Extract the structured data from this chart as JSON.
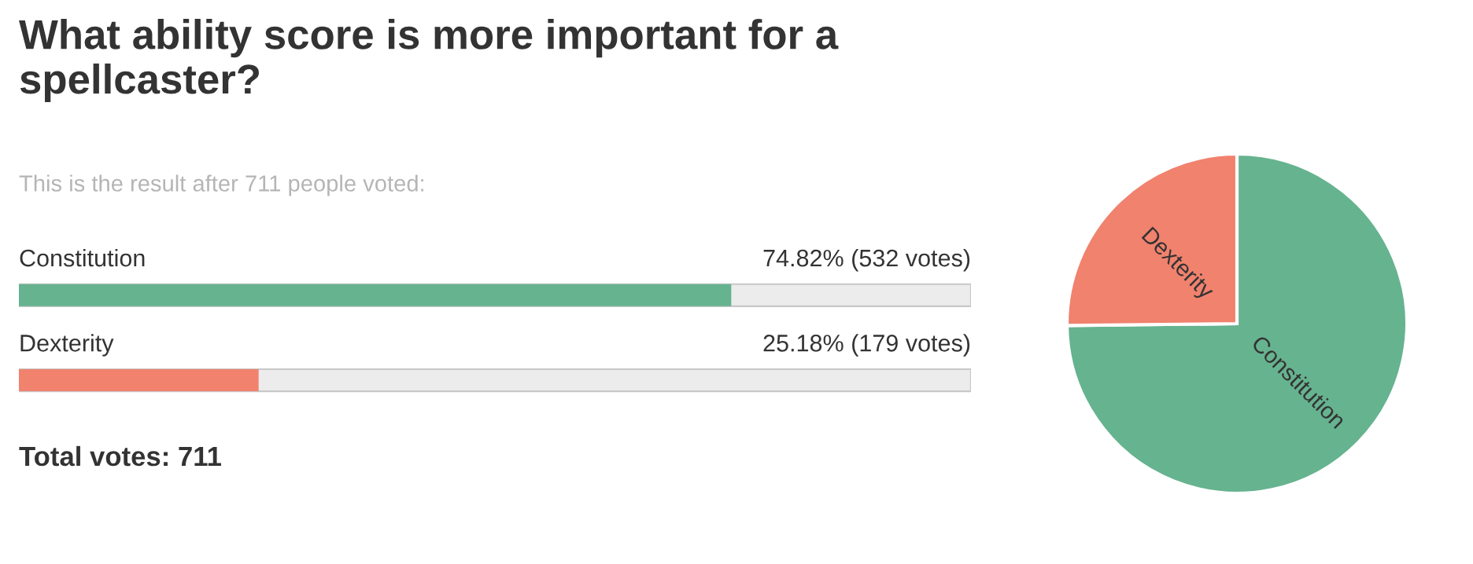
{
  "chart_data": [
    {
      "type": "bar",
      "orientation": "horizontal",
      "title": "What ability score is more important for a spellcaster?",
      "subtitle": "This is the result after 711 people voted:",
      "categories": [
        "Constitution",
        "Dexterity"
      ],
      "values": [
        74.82,
        25.18
      ],
      "colors": [
        "#66b38f",
        "#f0826e"
      ],
      "value_labels": [
        "74.82% (532 votes)",
        "25.18% (179 votes)"
      ],
      "xlim": [
        0,
        100
      ],
      "annotations": [
        "Total votes: 711"
      ]
    },
    {
      "type": "pie",
      "categories": [
        "Constitution",
        "Dexterity"
      ],
      "values": [
        74.82,
        25.18
      ],
      "colors": [
        "#66b38f",
        "#f0826e"
      ]
    }
  ]
}
